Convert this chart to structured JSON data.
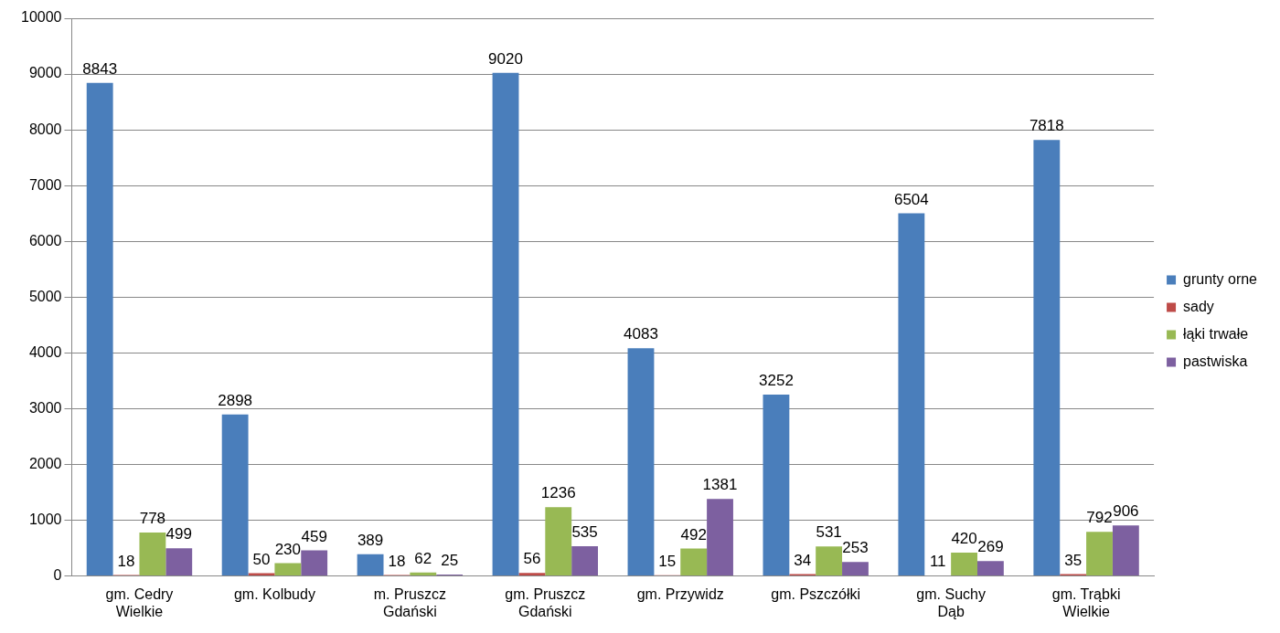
{
  "chart_data": {
    "type": "bar",
    "categories": [
      "gm. Cedry\nWielkie",
      "gm. Kolbudy",
      "m. Pruszcz\nGdański",
      "gm. Pruszcz\nGdański",
      "gm. Przywidz",
      "gm. Pszczółki",
      "gm. Suchy\nDąb",
      "gm. Trąbki\nWielkie"
    ],
    "series": [
      {
        "name": "grunty orne",
        "color": "#4a7ebb",
        "values": [
          8843,
          2898,
          389,
          9020,
          4083,
          3252,
          6504,
          7818
        ]
      },
      {
        "name": "sady",
        "color": "#be4b48",
        "values": [
          18,
          50,
          18,
          56,
          15,
          34,
          11,
          35
        ]
      },
      {
        "name": "łąki trwałe",
        "color": "#98b954",
        "values": [
          778,
          230,
          62,
          1236,
          492,
          531,
          420,
          792
        ]
      },
      {
        "name": "pastwiska",
        "color": "#7d60a0",
        "values": [
          499,
          459,
          25,
          535,
          1381,
          253,
          269,
          906
        ]
      }
    ],
    "ylim": [
      0,
      10000
    ],
    "yticks": [
      0,
      1000,
      2000,
      3000,
      4000,
      5000,
      6000,
      7000,
      8000,
      9000,
      10000
    ],
    "grid": "y",
    "legend": "right",
    "data_labels": true
  }
}
